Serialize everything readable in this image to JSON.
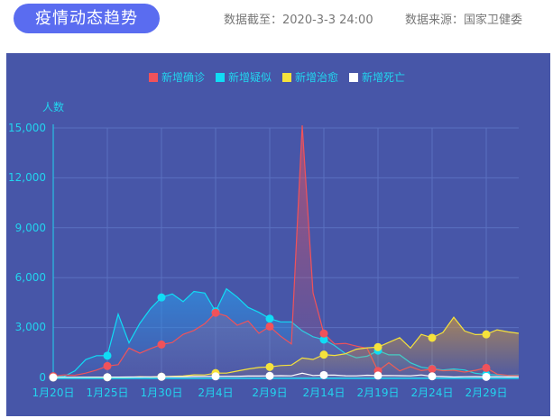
{
  "header": {
    "title": "疫情动态趋势",
    "date_label": "数据截至：2020-3-3 24:00",
    "source_label": "数据来源：国家卫健委"
  },
  "colors": {
    "panel_bg": "#4756a8",
    "title_pill": "#5a6cf0",
    "axis_text": "#22d4ee",
    "confirmed": "#f0525a",
    "suspected": "#10dcf5",
    "cured": "#f5e23c",
    "dead": "#ffffff"
  },
  "legend": [
    {
      "label": "新增确诊",
      "color": "#f0525a"
    },
    {
      "label": "新增疑似",
      "color": "#10dcf5"
    },
    {
      "label": "新增治愈",
      "color": "#f5e23c"
    },
    {
      "label": "新增死亡",
      "color": "#ffffff"
    }
  ],
  "axes": {
    "y_unit": "人数",
    "y_ticks": [
      "15,000",
      "12,000",
      "9,000",
      "6,000",
      "3,000",
      "0"
    ],
    "x_ticks": [
      "1月20日",
      "1月25日",
      "1月30日",
      "2月4日",
      "2月9日",
      "2月14日",
      "2月19日",
      "2月24日",
      "2月29日"
    ]
  },
  "chart_data": {
    "type": "line",
    "title": "疫情动态趋势",
    "xlabel": "",
    "ylabel": "人数",
    "ylim": [
      0,
      15000
    ],
    "grid": true,
    "legend_position": "top",
    "x": [
      "1月20日",
      "1月21日",
      "1月22日",
      "1月23日",
      "1月24日",
      "1月25日",
      "1月26日",
      "1月27日",
      "1月28日",
      "1月29日",
      "1月30日",
      "1月31日",
      "2月1日",
      "2月2日",
      "2月3日",
      "2月4日",
      "2月5日",
      "2月6日",
      "2月7日",
      "2月8日",
      "2月9日",
      "2月10日",
      "2月11日",
      "2月12日",
      "2月13日",
      "2月14日",
      "2月15日",
      "2月16日",
      "2月17日",
      "2月18日",
      "2月19日",
      "2月20日",
      "2月21日",
      "2月22日",
      "2月23日",
      "2月24日",
      "2月25日",
      "2月26日",
      "2月27日",
      "2月28日",
      "2月29日",
      "3月1日",
      "3月2日",
      "3月3日"
    ],
    "series": [
      {
        "name": "新增确诊",
        "values": [
          77,
          149,
          131,
          259,
          444,
          688,
          769,
          1771,
          1459,
          1737,
          1982,
          2102,
          2590,
          2829,
          3235,
          3887,
          3694,
          3143,
          3399,
          2656,
          3062,
          2478,
          2015,
          15152,
          5090,
          2641,
          2009,
          2048,
          1886,
          1749,
          394,
          889,
          397,
          648,
          409,
          508,
          406,
          433,
          327,
          427,
          573,
          202,
          125,
          119
        ]
      },
      {
        "name": "新增疑似",
        "values": [
          27,
          60,
          393,
          1072,
          1309,
          1309,
          3806,
          2077,
          3248,
          4148,
          4812,
          5019,
          4562,
          5173,
          5072,
          3971,
          5328,
          4833,
          4214,
          3916,
          3536,
          3342,
          3342,
          2807,
          2450,
          2277,
          1918,
          1432,
          1185,
          1277,
          1614,
          1361,
          1361,
          882,
          620,
          530,
          452,
          508,
          452,
          248,
          179,
          151,
          129,
          143
        ]
      },
      {
        "name": "新增治愈",
        "values": [
          0,
          0,
          0,
          6,
          3,
          11,
          2,
          9,
          43,
          21,
          47,
          73,
          85,
          157,
          150,
          262,
          261,
          387,
          510,
          600,
          632,
          716,
          744,
          1171,
          1081,
          1373,
          1323,
          1425,
          1701,
          1779,
          1824,
          2109,
          2393,
          1763,
          2589,
          2386,
          2706,
          3622,
          2796,
          2575,
          2592,
          2867,
          2742,
          2652
        ]
      },
      {
        "name": "新增死亡",
        "values": [
          0,
          3,
          8,
          8,
          16,
          15,
          24,
          26,
          26,
          38,
          43,
          46,
          45,
          57,
          64,
          65,
          73,
          73,
          86,
          89,
          97,
          108,
          97,
          254,
          121,
          143,
          142,
          105,
          98,
          136,
          114,
          118,
          109,
          97,
          150,
          71,
          52,
          29,
          44,
          47,
          35,
          42,
          31,
          38
        ]
      }
    ],
    "markers_every_n_days": 5
  }
}
